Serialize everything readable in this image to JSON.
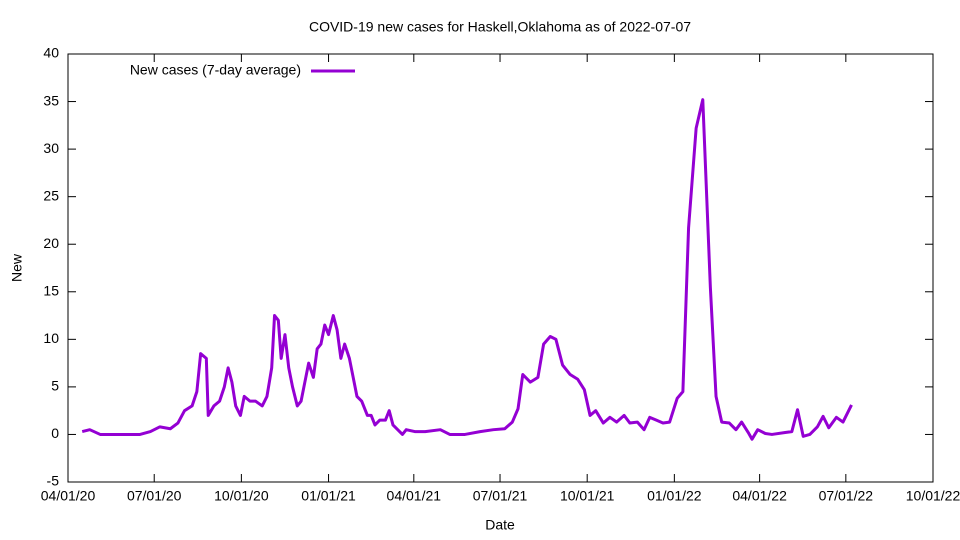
{
  "chart_data": {
    "type": "line",
    "title": "COVID-19 new cases for Haskell,Oklahoma as of 2022-07-07",
    "x_label": "Date",
    "y_label": "New",
    "legend": "top-left",
    "grid": false,
    "xlim": [
      "2020-04-01",
      "2022-10-01"
    ],
    "xticks": [
      {
        "value": "2020-04-01",
        "label": "04/01/20"
      },
      {
        "value": "2020-07-01",
        "label": "07/01/20"
      },
      {
        "value": "2020-10-01",
        "label": "10/01/20"
      },
      {
        "value": "2021-01-01",
        "label": "01/01/21"
      },
      {
        "value": "2021-04-01",
        "label": "04/01/21"
      },
      {
        "value": "2021-07-01",
        "label": "07/01/21"
      },
      {
        "value": "2021-10-01",
        "label": "10/01/21"
      },
      {
        "value": "2022-01-01",
        "label": "01/01/22"
      },
      {
        "value": "2022-04-01",
        "label": "04/01/22"
      },
      {
        "value": "2022-07-01",
        "label": "07/01/22"
      },
      {
        "value": "2022-10-01",
        "label": "10/01/22"
      }
    ],
    "ylim": [
      -5,
      40
    ],
    "yticks": [
      -5,
      0,
      5,
      10,
      15,
      20,
      25,
      30,
      35,
      40
    ],
    "x": [
      "2020-04-16",
      "2020-04-24",
      "2020-05-05",
      "2020-05-26",
      "2020-06-16",
      "2020-06-27",
      "2020-07-07",
      "2020-07-18",
      "2020-07-26",
      "2020-08-02",
      "2020-08-10",
      "2020-08-15",
      "2020-08-19",
      "2020-08-25",
      "2020-08-27",
      "2020-09-02",
      "2020-09-08",
      "2020-09-13",
      "2020-09-17",
      "2020-09-21",
      "2020-09-25",
      "2020-09-30",
      "2020-10-04",
      "2020-10-10",
      "2020-10-16",
      "2020-10-23",
      "2020-10-28",
      "2020-11-02",
      "2020-11-05",
      "2020-11-09",
      "2020-11-12",
      "2020-11-16",
      "2020-11-20",
      "2020-11-24",
      "2020-11-29",
      "2020-12-03",
      "2020-12-07",
      "2020-12-11",
      "2020-12-16",
      "2020-12-20",
      "2020-12-24",
      "2020-12-28",
      "2021-01-01",
      "2021-01-06",
      "2021-01-10",
      "2021-01-14",
      "2021-01-18",
      "2021-01-23",
      "2021-01-27",
      "2021-01-31",
      "2021-02-05",
      "2021-02-11",
      "2021-02-15",
      "2021-02-19",
      "2021-02-24",
      "2021-03-02",
      "2021-03-06",
      "2021-03-10",
      "2021-03-15",
      "2021-03-20",
      "2021-03-24",
      "2021-04-02",
      "2021-04-13",
      "2021-04-29",
      "2021-05-09",
      "2021-05-25",
      "2021-06-10",
      "2021-06-24",
      "2021-07-06",
      "2021-07-14",
      "2021-07-20",
      "2021-07-25",
      "2021-08-02",
      "2021-08-10",
      "2021-08-16",
      "2021-08-23",
      "2021-08-29",
      "2021-09-05",
      "2021-09-13",
      "2021-09-21",
      "2021-09-28",
      "2021-10-04",
      "2021-10-10",
      "2021-10-18",
      "2021-10-25",
      "2021-11-01",
      "2021-11-09",
      "2021-11-15",
      "2021-11-23",
      "2021-11-30",
      "2021-12-06",
      "2021-12-13",
      "2021-12-20",
      "2021-12-27",
      "2022-01-04",
      "2022-01-10",
      "2022-01-16",
      "2022-01-24",
      "2022-01-31",
      "2022-02-08",
      "2022-02-14",
      "2022-02-20",
      "2022-02-28",
      "2022-03-07",
      "2022-03-13",
      "2022-03-20",
      "2022-03-24",
      "2022-03-30",
      "2022-04-07",
      "2022-04-14",
      "2022-04-28",
      "2022-05-05",
      "2022-05-11",
      "2022-05-17",
      "2022-05-24",
      "2022-06-01",
      "2022-06-07",
      "2022-06-13",
      "2022-06-21",
      "2022-06-28",
      "2022-07-07"
    ],
    "series": [
      {
        "name": "New cases (7-day average)",
        "color": "#9400d3",
        "values": [
          0.3,
          0.5,
          0,
          0,
          0,
          0.3,
          0.8,
          0.6,
          1.2,
          2.5,
          3,
          4.5,
          8.5,
          8,
          2,
          3,
          3.5,
          5,
          7,
          5.5,
          3,
          2,
          4,
          3.5,
          3.5,
          3,
          4,
          7,
          12.5,
          12,
          8,
          10.5,
          7,
          5,
          3,
          3.5,
          5.5,
          7.5,
          6,
          9,
          9.5,
          11.5,
          10.5,
          12.5,
          11,
          8,
          9.5,
          8,
          6,
          4,
          3.5,
          2,
          2,
          1,
          1.5,
          1.5,
          2.5,
          1,
          0.5,
          0,
          0.5,
          0.3,
          0.3,
          0.5,
          0,
          0,
          0.3,
          0.5,
          0.6,
          1.3,
          2.7,
          6.3,
          5.5,
          6,
          9.5,
          10.3,
          10,
          7.3,
          6.3,
          5.8,
          4.7,
          2,
          2.5,
          1.2,
          1.8,
          1.3,
          2,
          1.2,
          1.3,
          0.5,
          1.8,
          1.5,
          1.2,
          1.3,
          3.8,
          4.5,
          21.7,
          32.2,
          35.2,
          15.5,
          4,
          1.3,
          1.2,
          0.5,
          1.3,
          0.2,
          -0.5,
          0.5,
          0.1,
          0,
          0.2,
          0.3,
          2.6,
          -0.2,
          0,
          0.8,
          1.9,
          0.7,
          1.8,
          1.3,
          3.1
        ]
      }
    ]
  }
}
